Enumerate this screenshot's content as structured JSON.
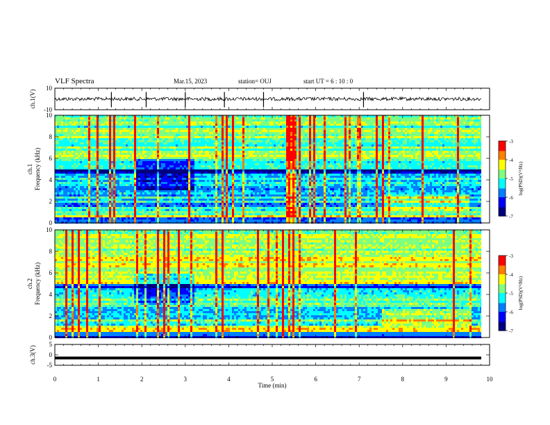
{
  "header": {
    "title": "VLF Spectra",
    "date": "Mar.15, 2023",
    "station": "station= OUJ",
    "start": "start  UT =  6 : 10 : 0"
  },
  "chart_data": [
    {
      "type": "line",
      "panel": "ch1-waveform",
      "ylabel": "ch.1(V)",
      "ylim": [
        -10,
        10
      ],
      "yticks": [
        "10",
        "-10"
      ],
      "xlim": [
        0,
        10
      ],
      "baseline": 0,
      "description_values": {
        "spikes_at_min": [
          1.3,
          2.1,
          3.0,
          3.9,
          4.8,
          7.1
        ]
      }
    },
    {
      "type": "heatmap",
      "panel": "ch1-spectrogram",
      "ylabel_top": "ch.1",
      "ylabel": "Frequency (kHz)",
      "ylim": [
        0,
        10
      ],
      "yticks": [
        "0",
        "2",
        "4",
        "6",
        "8",
        "10"
      ],
      "xlim": [
        0,
        10
      ],
      "colorbar": {
        "label": "log(PSD)(V²/Hz)",
        "range": [
          -7,
          -3
        ],
        "ticks": [
          "-3",
          "-4",
          "-5",
          "-6",
          "-7"
        ]
      }
    },
    {
      "type": "heatmap",
      "panel": "ch2-spectrogram",
      "ylabel_top": "ch.2",
      "ylabel": "Frequency (kHz)",
      "ylim": [
        0,
        10
      ],
      "yticks": [
        "0",
        "2",
        "4",
        "6",
        "8",
        "10"
      ],
      "xlim": [
        0,
        10
      ],
      "colorbar": {
        "label": "log(PSD)(V²/Hz)",
        "range": [
          -7,
          -3
        ],
        "ticks": [
          "-3",
          "-4",
          "-5",
          "-6",
          "-7"
        ]
      }
    },
    {
      "type": "line",
      "panel": "ch3-waveform",
      "ylabel": "ch.3(V)",
      "ylim": [
        -5,
        5
      ],
      "yticks": [
        "5",
        "0",
        "-5"
      ],
      "xlim": [
        0,
        10
      ],
      "baseline": -1.5
    }
  ],
  "xaxis": {
    "label": "Time (min)",
    "ticks": [
      "0",
      "1",
      "2",
      "3",
      "4",
      "5",
      "6",
      "7",
      "8",
      "9",
      "10"
    ]
  },
  "colors": {
    "waveform": "#000000",
    "colormap": [
      "#00007f",
      "#0000ff",
      "#007fff",
      "#00ffff",
      "#7fff7f",
      "#ffff00",
      "#ff7f00",
      "#ff0000",
      "#7f0000"
    ]
  }
}
